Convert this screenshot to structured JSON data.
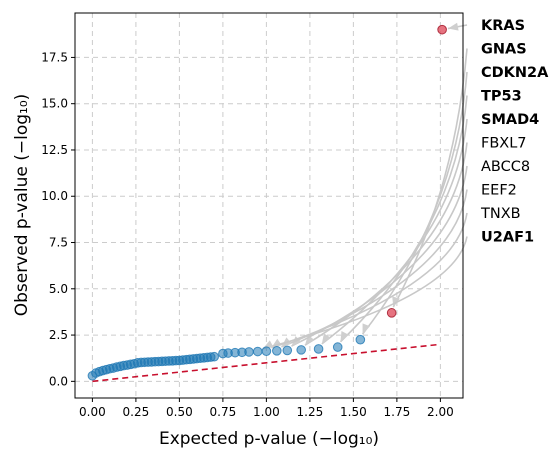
{
  "chart_data": {
    "type": "scatter",
    "title": "",
    "xlabel": "Expected p-value (−log₁₀)",
    "ylabel": "Observed p-value (−log₁₀)",
    "xlim": [
      -0.1,
      2.13
    ],
    "ylim": [
      -0.9,
      19.9
    ],
    "x_ticks": [
      "0.00",
      "0.25",
      "0.50",
      "0.75",
      "1.00",
      "1.25",
      "1.50",
      "1.75",
      "2.00"
    ],
    "y_ticks": [
      "0.0",
      "2.5",
      "5.0",
      "7.5",
      "10.0",
      "12.5",
      "15.0",
      "17.5"
    ],
    "grid": true,
    "reference_line": {
      "x": [
        0.0,
        2.0
      ],
      "y": [
        0.0,
        2.0
      ],
      "color": "#c8102e",
      "style": "dashed"
    },
    "points": {
      "x": [
        0.0,
        0.02,
        0.04,
        0.06,
        0.08,
        0.1,
        0.12,
        0.14,
        0.16,
        0.18,
        0.2,
        0.22,
        0.24,
        0.26,
        0.28,
        0.3,
        0.32,
        0.34,
        0.36,
        0.38,
        0.4,
        0.42,
        0.44,
        0.46,
        0.48,
        0.5,
        0.52,
        0.54,
        0.56,
        0.58,
        0.6,
        0.62,
        0.64,
        0.66,
        0.68,
        0.7,
        0.75,
        0.78,
        0.82,
        0.86,
        0.9,
        0.95,
        1.0,
        1.06,
        1.12,
        1.2,
        1.3,
        1.41,
        1.54
      ],
      "y": [
        0.3,
        0.45,
        0.52,
        0.58,
        0.63,
        0.68,
        0.72,
        0.77,
        0.81,
        0.85,
        0.88,
        0.92,
        0.95,
        1.0,
        1.02,
        1.03,
        1.04,
        1.05,
        1.06,
        1.07,
        1.08,
        1.09,
        1.1,
        1.11,
        1.12,
        1.13,
        1.15,
        1.17,
        1.19,
        1.21,
        1.23,
        1.25,
        1.27,
        1.29,
        1.31,
        1.33,
        1.5,
        1.53,
        1.55,
        1.57,
        1.59,
        1.61,
        1.63,
        1.65,
        1.67,
        1.7,
        1.75,
        1.85,
        2.25
      ],
      "color": "#1f78b4"
    },
    "highlighted_points": {
      "x": [
        1.72,
        2.01
      ],
      "y": [
        3.7,
        19.0
      ],
      "color": "#e05060"
    },
    "labels": [
      {
        "text": "KRAS",
        "bold": true,
        "x": 2.01,
        "y": 19.0
      },
      {
        "text": "GNAS",
        "bold": true,
        "x": 1.72,
        "y": 3.7
      },
      {
        "text": "CDKN2A",
        "bold": true,
        "x": 1.54,
        "y": 2.25
      },
      {
        "text": "TP53",
        "bold": true,
        "x": 1.41,
        "y": 1.85
      },
      {
        "text": "SMAD4",
        "bold": true,
        "x": 1.3,
        "y": 1.75
      },
      {
        "text": "FBXL7",
        "bold": false,
        "x": 1.2,
        "y": 1.7
      },
      {
        "text": "ABCC8",
        "bold": false,
        "x": 1.12,
        "y": 1.67
      },
      {
        "text": "EEF2",
        "bold": false,
        "x": 1.06,
        "y": 1.65
      },
      {
        "text": "TNXB",
        "bold": false,
        "x": 1.0,
        "y": 1.63
      },
      {
        "text": "U2AF1",
        "bold": true,
        "x": 0.95,
        "y": 1.61
      }
    ]
  }
}
